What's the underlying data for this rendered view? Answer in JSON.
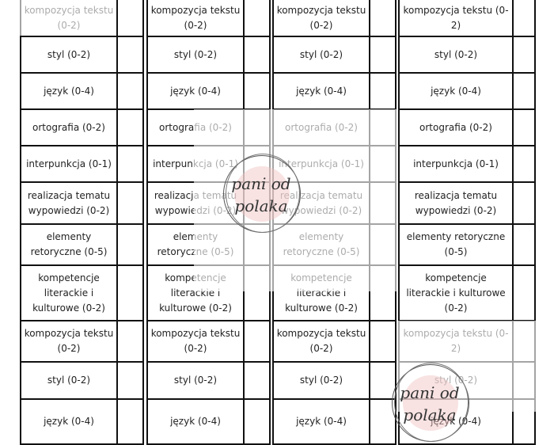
{
  "columns": [
    {
      "rows": [
        "kompozycja tekstu (0-2)",
        "styl (0-2)",
        "język (0-4)",
        "ortografia (0-2)",
        "interpunkcja (0-1)",
        "realizacja tematu wypowiedzi (0-2)",
        "elementy retoryczne (0-5)",
        "kompetencje literackie i kulturowe (0-2)",
        "kompozycja tekstu (0-2)",
        "styl (0-2)",
        "język (0-4)"
      ]
    },
    {
      "rows": [
        "kompozycja tekstu (0-2)",
        "styl (0-2)",
        "język (0-4)",
        "ortografia (0-2)",
        "interpunkcja (0-1)",
        "realizacja tematu wypowiedzi (0-2)",
        "elementy retoryczne (0-5)",
        "kompetencje literackie i kulturowe (0-2)",
        "kompozycja tekstu (0-2)",
        "styl (0-2)",
        "język (0-4)"
      ]
    },
    {
      "rows": [
        "kompozycja tekstu (0-2)",
        "styl (0-2)",
        "język (0-4)",
        "ortografia (0-2)",
        "interpunkcja (0-1)",
        "realizacja tematu wypowiedzi (0-2)",
        "elementy retoryczne (0-5)",
        "kompetencje literackie i kulturowe (0-2)",
        "kompozycja tekstu (0-2)",
        "styl (0-2)",
        "język (0-4)"
      ]
    },
    {
      "rows": [
        "kompozycja tekstu (0-2)",
        "styl (0-2)",
        "język (0-4)",
        "ortografia (0-2)",
        "interpunkcja (0-1)",
        "realizacja tematu wypowiedzi (0-2)",
        "elementy retoryczne (0-5)",
        "kompetencje literackie i kulturowe (0-2)",
        "kompozycja tekstu (0-2)",
        "styl (0-2)",
        "język (0-4)"
      ]
    }
  ],
  "watermark": {
    "line1": "pani od",
    "line2": "polaka",
    "color": "#f0bebe"
  }
}
